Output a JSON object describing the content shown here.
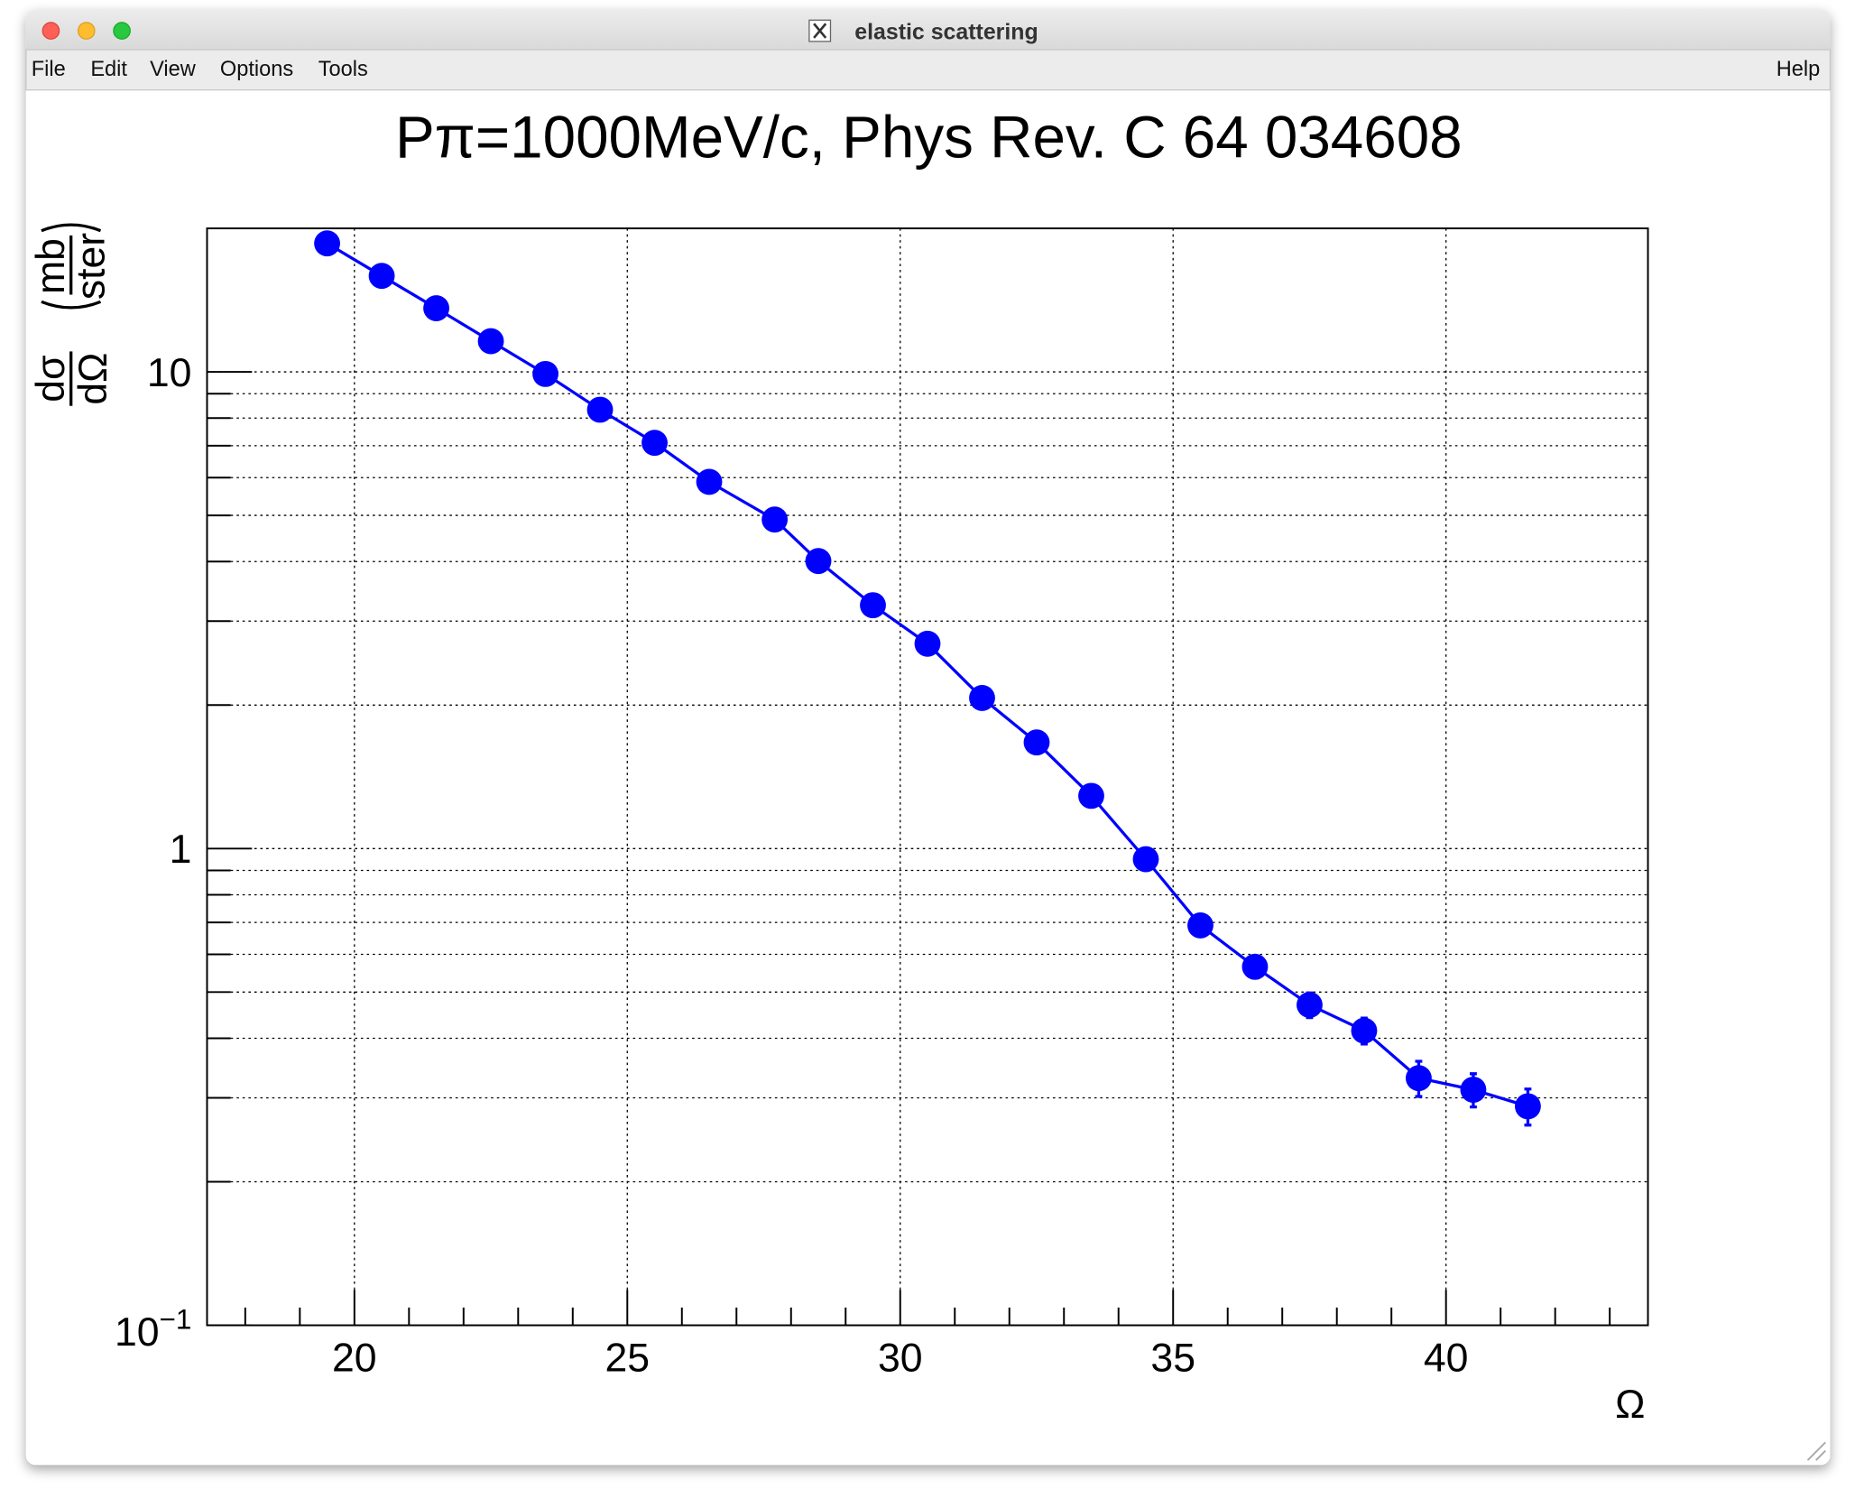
{
  "window": {
    "title": "elastic scattering",
    "menu": [
      "File",
      "Edit",
      "View",
      "Options",
      "Tools"
    ],
    "help": "Help"
  },
  "chart_data": {
    "type": "scatter",
    "title": "Pπ=1000MeV/c, Phys Rev. C 64 034608",
    "xlabel": "Ω",
    "ylabel": {
      "numerator": "dσ",
      "denominator": "dΩ",
      "unit_numerator": "mb",
      "unit_denominator": "ster"
    },
    "x": [
      19.5,
      20.5,
      21.5,
      22.5,
      23.5,
      24.5,
      25.5,
      26.5,
      27.7,
      28.5,
      29.5,
      30.5,
      31.5,
      32.5,
      33.5,
      34.5,
      35.5,
      36.5,
      37.5,
      38.5,
      39.5,
      40.5,
      41.5
    ],
    "series": [
      {
        "color": "#0000ff",
        "values": [
          18.6,
          15.9,
          13.6,
          11.6,
          9.9,
          8.33,
          7.1,
          5.88,
          4.9,
          4.01,
          3.24,
          2.69,
          2.07,
          1.67,
          1.29,
          0.95,
          0.69,
          0.565,
          0.47,
          0.415,
          0.33,
          0.312,
          0.288
        ],
        "errors": [
          0.4,
          0.35,
          0.3,
          0.25,
          0.22,
          0.19,
          0.16,
          0.13,
          0.11,
          0.09,
          0.08,
          0.07,
          0.06,
          0.05,
          0.045,
          0.04,
          0.035,
          0.03,
          0.028,
          0.026,
          0.028,
          0.025,
          0.025
        ]
      }
    ],
    "xlim": [
      17.3,
      43.7
    ],
    "xticks": [
      20,
      25,
      30,
      35,
      40
    ],
    "xminor_ticks": [
      18,
      19,
      21,
      22,
      23,
      24,
      26,
      27,
      28,
      29,
      31,
      32,
      33,
      34,
      36,
      37,
      38,
      39,
      41,
      42,
      43
    ],
    "ylim": [
      0.1,
      20
    ],
    "yscale": "log",
    "yticks": [
      {
        "value": 0.1,
        "label": "10",
        "superscript": "−1"
      },
      1,
      10
    ],
    "yminor_ticks": [
      0.2,
      0.3,
      0.4,
      0.5,
      0.6,
      0.7,
      0.8,
      0.9,
      2,
      3,
      4,
      5,
      6,
      7,
      8,
      9
    ],
    "grid": true
  }
}
